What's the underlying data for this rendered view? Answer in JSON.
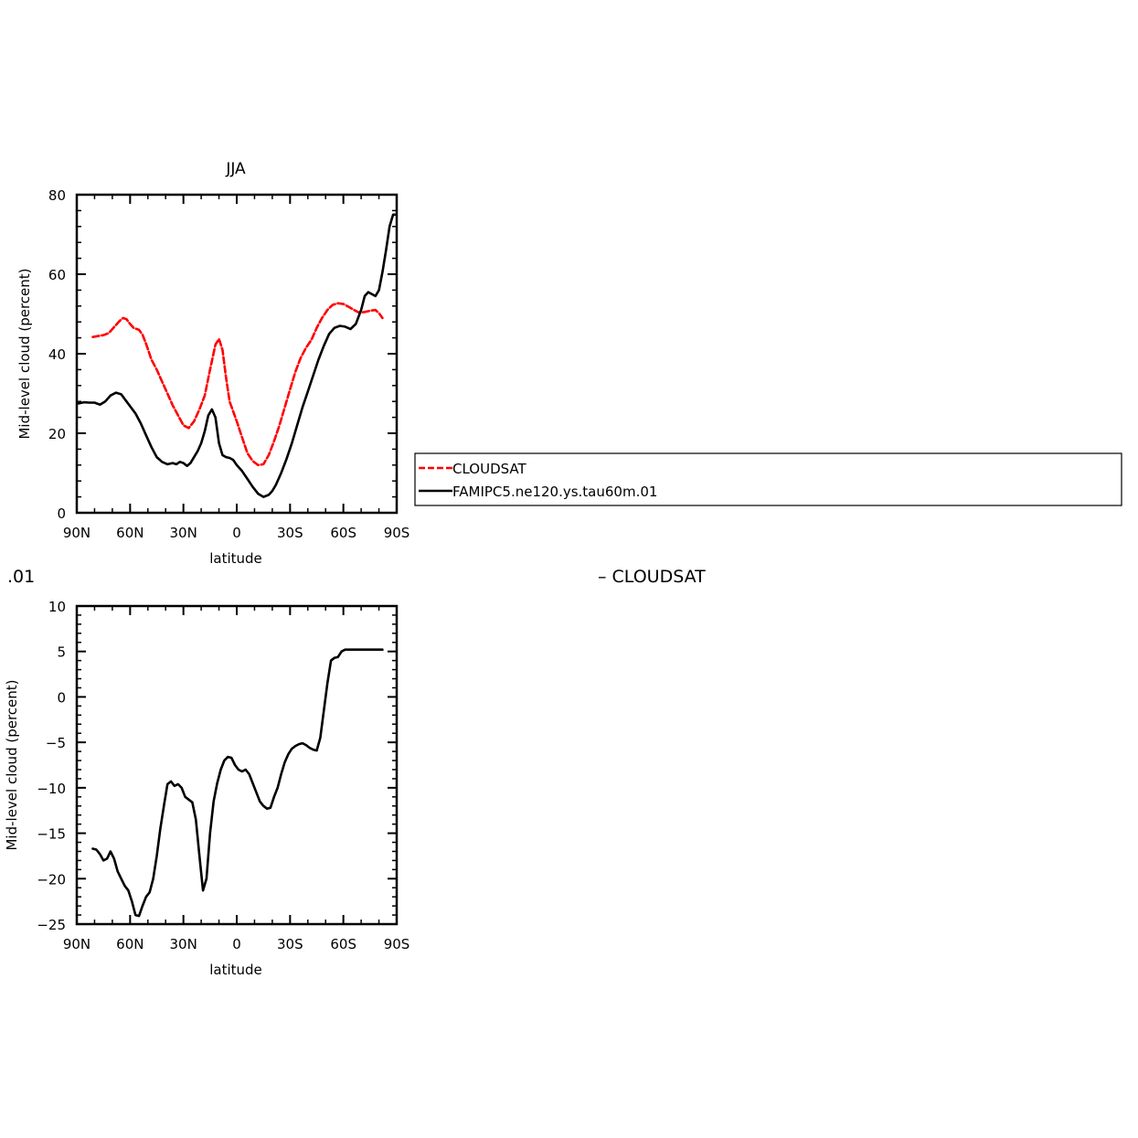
{
  "figure": {
    "diff_panel_title_fragment": ".01",
    "diff_panel_legend_fragment": "– CLOUDSAT"
  },
  "colors": {
    "cloudsat": "#ff0000",
    "model": "#000000",
    "axes": "#000000"
  },
  "legend": {
    "items": [
      {
        "label": "CLOUDSAT",
        "color": "#ff0000",
        "dash": "dashed"
      },
      {
        "label": "FAMIPC5.ne120.ys.tau60m.01",
        "color": "#000000",
        "dash": "solid"
      }
    ]
  },
  "chart_data": [
    {
      "type": "line",
      "title": "JJA",
      "xlabel": "latitude",
      "ylabel": "Mid-level cloud (percent)",
      "xlim": [
        90,
        -90
      ],
      "ylim": [
        0,
        80
      ],
      "xticks": [
        90,
        60,
        30,
        0,
        -30,
        -60,
        -90
      ],
      "xticklabels": [
        "90N",
        "60N",
        "30N",
        "0",
        "30S",
        "60S",
        "90S"
      ],
      "yticks": [
        0,
        20,
        40,
        60,
        80
      ],
      "yticklabels": [
        "0",
        "20",
        "40",
        "60",
        "80"
      ],
      "series": [
        {
          "name": "CLOUDSAT",
          "color": "#ff0000",
          "dash": "dashed",
          "x": [
            81,
            75,
            72,
            69,
            66,
            64,
            62,
            60,
            58,
            55,
            53,
            51,
            48,
            45,
            42,
            39,
            36,
            33,
            30,
            27,
            24,
            21,
            18,
            15,
            12,
            10,
            8,
            6,
            4,
            2,
            0,
            -3,
            -6,
            -9,
            -12,
            -15,
            -18,
            -21,
            -24,
            -27,
            -30,
            -33,
            -36,
            -39,
            -42,
            -45,
            -48,
            -51,
            -54,
            -57,
            -60,
            -63,
            -66,
            -69,
            -72,
            -75,
            -78,
            -80,
            -82
          ],
          "y": [
            44.2,
            44.7,
            45.2,
            46.7,
            48.2,
            49.0,
            48.7,
            47.5,
            46.5,
            46.0,
            44.8,
            42.5,
            38.5,
            36.0,
            33.0,
            30.0,
            27.0,
            24.5,
            22.0,
            21.3,
            23.0,
            26.0,
            29.5,
            36.0,
            42.3,
            43.7,
            41.0,
            34.0,
            28.0,
            25.5,
            23.0,
            19.0,
            15.0,
            13.0,
            12.0,
            12.2,
            14.5,
            18.0,
            22.0,
            26.5,
            31.0,
            35.5,
            39.0,
            41.5,
            43.5,
            46.5,
            49.0,
            51.0,
            52.3,
            52.7,
            52.5,
            51.8,
            51.0,
            50.3,
            50.5,
            50.8,
            51.0,
            50.2,
            49.0
          ]
        },
        {
          "name": "FAMIPC5.ne120.ys.tau60m.01",
          "color": "#000000",
          "dash": "solid",
          "x": [
            89,
            86,
            83,
            80,
            77,
            74,
            71,
            68,
            65,
            62,
            60,
            57,
            54,
            51,
            48,
            45,
            42,
            39,
            36,
            34,
            32,
            30,
            28,
            26,
            24,
            22,
            20,
            18,
            16,
            14,
            12,
            10,
            8,
            6,
            4,
            2,
            0,
            -3,
            -6,
            -9,
            -12,
            -15,
            -18,
            -20,
            -22,
            -25,
            -28,
            -31,
            -34,
            -37,
            -40,
            -43,
            -46,
            -49,
            -52,
            -55,
            -58,
            -61,
            -64,
            -67,
            -70,
            -72,
            -74,
            -76,
            -78,
            -80,
            -82,
            -84,
            -86,
            -88,
            -89
          ],
          "y": [
            27.5,
            27.8,
            27.7,
            27.7,
            27.2,
            28.0,
            29.5,
            30.2,
            29.8,
            28.0,
            26.8,
            25.0,
            22.5,
            19.5,
            16.5,
            14.0,
            12.8,
            12.2,
            12.5,
            12.2,
            12.8,
            12.5,
            11.8,
            12.5,
            14.0,
            15.5,
            17.5,
            20.5,
            24.5,
            26.0,
            24.0,
            17.5,
            14.5,
            14.0,
            13.8,
            13.3,
            12.0,
            10.5,
            8.5,
            6.5,
            4.8,
            4.0,
            4.5,
            5.5,
            7.0,
            10.0,
            13.5,
            17.5,
            22.0,
            26.5,
            30.5,
            34.5,
            38.5,
            42.0,
            45.0,
            46.5,
            47.0,
            46.8,
            46.2,
            47.5,
            51.0,
            54.5,
            55.5,
            55.0,
            54.5,
            56.0,
            60.5,
            66.0,
            72.0,
            75.0,
            75.0
          ]
        }
      ]
    },
    {
      "type": "line",
      "title": "",
      "xlabel": "latitude",
      "ylabel": "Mid-level cloud (percent)",
      "xlim": [
        90,
        -90
      ],
      "ylim": [
        -25,
        10
      ],
      "xticks": [
        90,
        60,
        30,
        0,
        -30,
        -60,
        -90
      ],
      "xticklabels": [
        "90N",
        "60N",
        "30N",
        "0",
        "30S",
        "60S",
        "90S"
      ],
      "yticks": [
        -25,
        -20,
        -15,
        -10,
        -5,
        0,
        5,
        10
      ],
      "yticklabels": [
        "−25",
        "−20",
        "−15",
        "−10",
        "−5",
        "0",
        "5",
        "10"
      ],
      "series": [
        {
          "color": "#000000",
          "dash": "solid",
          "x": [
            81,
            79,
            77,
            75,
            73,
            71,
            69,
            67,
            65,
            63,
            61,
            59,
            57,
            55,
            53,
            51,
            49,
            47,
            45,
            43,
            41,
            39,
            37,
            35,
            33,
            31,
            29,
            27,
            25,
            23,
            21,
            19,
            17,
            15,
            13,
            11,
            9,
            7,
            5,
            3,
            1,
            -1,
            -3,
            -5,
            -7,
            -9,
            -11,
            -13,
            -15,
            -17,
            -19,
            -21,
            -23,
            -25,
            -27,
            -29,
            -31,
            -33,
            -35,
            -37,
            -39,
            -41,
            -43,
            -45,
            -47,
            -49,
            -51,
            -53,
            -55,
            -57,
            -59,
            -61,
            -63,
            -65,
            -67,
            -69,
            -71,
            -73,
            -75,
            -77,
            -79,
            -81,
            -82
          ],
          "y": [
            -16.7,
            -16.8,
            -17.3,
            -18.0,
            -17.8,
            -17.0,
            -17.8,
            -19.2,
            -20.0,
            -20.8,
            -21.3,
            -22.5,
            -24.0,
            -24.1,
            -23.0,
            -22.0,
            -21.5,
            -20.0,
            -17.5,
            -14.5,
            -12.0,
            -9.6,
            -9.3,
            -9.8,
            -9.6,
            -10.0,
            -11.0,
            -11.3,
            -11.6,
            -13.5,
            -17.5,
            -21.3,
            -20.0,
            -15.0,
            -11.5,
            -9.5,
            -8.0,
            -7.0,
            -6.6,
            -6.7,
            -7.5,
            -8.0,
            -8.2,
            -8.0,
            -8.5,
            -9.5,
            -10.5,
            -11.5,
            -12.0,
            -12.3,
            -12.2,
            -11.0,
            -10.0,
            -8.5,
            -7.2,
            -6.3,
            -5.7,
            -5.4,
            -5.2,
            -5.1,
            -5.3,
            -5.6,
            -5.8,
            -5.9,
            -4.5,
            -1.5,
            1.5,
            4.0,
            4.3,
            4.4,
            5.0,
            5.2,
            5.2,
            5.2,
            5.2,
            5.2,
            5.2,
            5.2,
            5.2,
            5.2,
            5.2,
            5.2,
            5.2
          ]
        }
      ]
    }
  ]
}
